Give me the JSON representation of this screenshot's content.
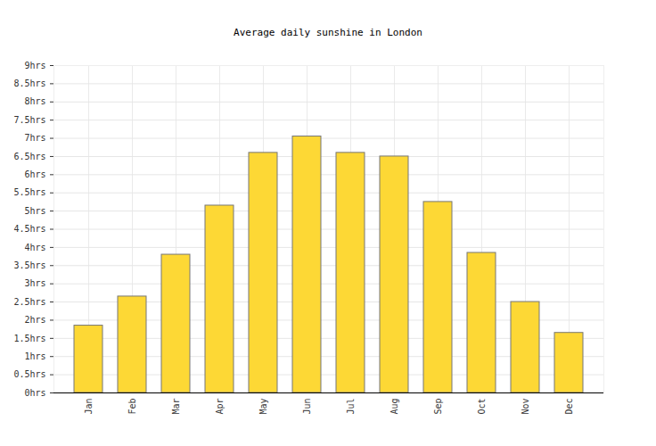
{
  "chart_data": {
    "type": "bar",
    "title": "Average daily sunshine in London",
    "categories": [
      "Jan",
      "Feb",
      "Mar",
      "Apr",
      "May",
      "Jun",
      "Jul",
      "Aug",
      "Sep",
      "Oct",
      "Nov",
      "Dec"
    ],
    "values": [
      1.85,
      2.65,
      3.8,
      5.15,
      6.6,
      7.05,
      6.6,
      6.5,
      5.25,
      3.85,
      2.5,
      1.65
    ],
    "color": "#fdd835",
    "ylim": [
      0,
      9
    ],
    "yticks": [
      {
        "value": 0,
        "label": "0hrs"
      },
      {
        "value": 0.5,
        "label": "0.5hrs"
      },
      {
        "value": 1,
        "label": "1hrs"
      },
      {
        "value": 1.5,
        "label": "1.5hrs"
      },
      {
        "value": 2,
        "label": "2hrs"
      },
      {
        "value": 2.5,
        "label": "2.5hrs"
      },
      {
        "value": 3,
        "label": "3hrs"
      },
      {
        "value": 3.5,
        "label": "3.5hrs"
      },
      {
        "value": 4,
        "label": "4hrs"
      },
      {
        "value": 4.5,
        "label": "4.5hrs"
      },
      {
        "value": 5,
        "label": "5hrs"
      },
      {
        "value": 5.5,
        "label": "5.5hrs"
      },
      {
        "value": 6,
        "label": "6hrs"
      },
      {
        "value": 6.5,
        "label": "6.5hrs"
      },
      {
        "value": 7,
        "label": "7hrs"
      },
      {
        "value": 7.5,
        "label": "7.5hrs"
      },
      {
        "value": 8,
        "label": "8hrs"
      },
      {
        "value": 8.5,
        "label": "8.5hrs"
      },
      {
        "value": 9,
        "label": "9hrs"
      }
    ],
    "grid": true
  }
}
